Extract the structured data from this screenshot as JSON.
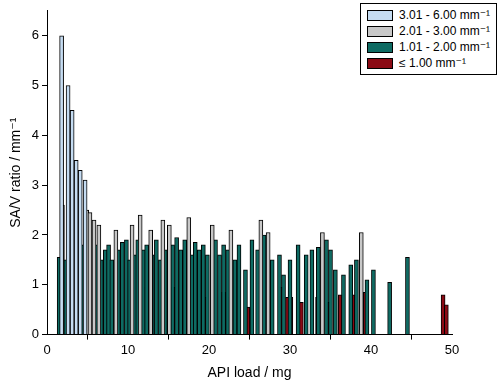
{
  "chart_data": {
    "type": "bar",
    "x_label": "API load / mg",
    "y_label": "SA/V ratio / mm⁻¹",
    "xlim": [
      0,
      50
    ],
    "xticks": [
      0,
      10,
      20,
      30,
      40,
      50
    ],
    "ylim": [
      0,
      6.5
    ],
    "yticks": [
      0,
      1,
      2,
      3,
      4,
      5,
      6
    ],
    "grid": false,
    "legend": "upper right",
    "series": [
      {
        "name": "3.01 - 6.00 mm⁻¹",
        "color": "#c5dcf2",
        "x": [
          1.8,
          2.6,
          3.1,
          3.6,
          4.1,
          4.7
        ],
        "values": [
          6.0,
          5.0,
          4.5,
          3.5,
          3.3,
          3.1
        ]
      },
      {
        "name": "2.01 - 3.00 mm⁻¹",
        "color": "#c8c8c8",
        "x": [
          1.9,
          4.9,
          5.3,
          5.8,
          6.4,
          8.5,
          10.5,
          11.5,
          12.8,
          14.3,
          15.1,
          17.5,
          20.4,
          22.7,
          26.4,
          27.3,
          34.0,
          38.8
        ],
        "values": [
          2.6,
          2.5,
          2.45,
          2.3,
          2.2,
          2.1,
          2.2,
          2.4,
          2.1,
          2.3,
          2.2,
          2.35,
          2.2,
          2.1,
          2.3,
          2.05,
          2.05,
          2.05
        ]
      },
      {
        "name": "1.01 - 2.00 mm⁻¹",
        "color": "#0e6b63",
        "x": [
          1.5,
          2.2,
          2.8,
          4.5,
          5.0,
          5.5,
          6.0,
          6.7,
          7.2,
          7.6,
          8.0,
          8.8,
          9.3,
          9.8,
          10.2,
          10.8,
          11.2,
          11.9,
          12.3,
          13.0,
          13.5,
          14.0,
          14.6,
          15.5,
          16.0,
          16.5,
          17.0,
          17.9,
          18.3,
          18.8,
          19.3,
          19.8,
          20.8,
          21.3,
          21.8,
          22.3,
          23.2,
          23.7,
          24.5,
          25.3,
          26.0,
          26.8,
          27.8,
          28.7,
          29.2,
          30.0,
          31.0,
          32.0,
          32.7,
          33.5,
          34.5,
          35.0,
          35.6,
          36.6,
          37.5,
          38.2,
          39.5,
          40.3,
          42.3,
          44.5
        ],
        "values": [
          1.55,
          1.5,
          1.7,
          1.8,
          1.5,
          1.9,
          1.8,
          1.5,
          1.7,
          1.8,
          1.5,
          1.7,
          1.85,
          1.9,
          1.5,
          1.6,
          1.9,
          1.7,
          1.8,
          1.6,
          1.9,
          1.5,
          1.7,
          1.8,
          1.95,
          1.7,
          1.9,
          1.6,
          1.85,
          1.7,
          1.8,
          1.6,
          1.9,
          1.6,
          1.8,
          1.7,
          1.5,
          1.8,
          1.3,
          1.9,
          1.7,
          2.0,
          1.5,
          1.6,
          1.2,
          1.5,
          1.8,
          1.6,
          1.7,
          1.75,
          1.9,
          1.7,
          1.3,
          1.2,
          1.4,
          1.5,
          1.1,
          1.3,
          1.05,
          1.55
        ]
      },
      {
        "name": "≤ 1.00 mm⁻¹",
        "color": "#8b0a14",
        "x": [
          10.6,
          12.1,
          15.6,
          17.2,
          18.0,
          19.6,
          21.8,
          22.5,
          24.8,
          27.2,
          28.9,
          29.7,
          30.1,
          31.4,
          33.4,
          34.8,
          36.2,
          37.8,
          39.3,
          48.9,
          49.3
        ],
        "values": [
          0.9,
          0.95,
          0.95,
          0.9,
          0.85,
          0.75,
          0.85,
          0.75,
          0.55,
          0.8,
          0.95,
          0.75,
          0.75,
          0.65,
          0.75,
          0.65,
          0.8,
          0.8,
          0.85,
          0.8,
          0.6
        ]
      }
    ]
  }
}
